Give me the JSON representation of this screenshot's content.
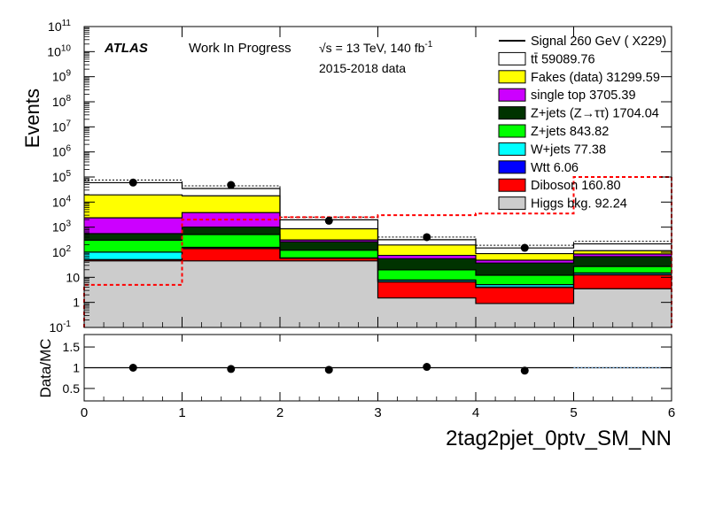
{
  "header": {
    "atlas": "ATLAS",
    "status": "Work In Progress",
    "energy": "√s = 13 TeV, 140 fb",
    "lumi_exp": "-1",
    "data_period": "2015-2018 data"
  },
  "colors": {
    "ttbar": "#ffffff",
    "fakes": "#ffff00",
    "singletop": "#cc00ff",
    "ztautau": "#003300",
    "zjets": "#00ff00",
    "wjets": "#00ffff",
    "wtt": "#0000ff",
    "diboson": "#ff0000",
    "higgs": "#cccccc",
    "signal": "#ff0000"
  },
  "chart_data": {
    "type": "bar",
    "subtype": "stacked-histogram-with-ratio",
    "x_title": "2tag2pjet_0ptv_SM_NN",
    "y_title": "Events",
    "ratio_y_title": "Data/MC",
    "log_y": true,
    "xlim": [
      0,
      6
    ],
    "ylim_exponents": [
      -1,
      11
    ],
    "ratio_ylim": [
      0.2,
      1.8
    ],
    "bin_edges": [
      0,
      1,
      2,
      3,
      4,
      5,
      6
    ],
    "x_ticks": [
      "0",
      "1",
      "2",
      "3",
      "4",
      "5",
      "6"
    ],
    "y_ticks": [
      {
        "exp": -1,
        "base": "10",
        "sup": "-1"
      },
      {
        "exp": 0,
        "base": "1",
        "sup": ""
      },
      {
        "exp": 1,
        "base": "10",
        "sup": ""
      },
      {
        "exp": 2,
        "base": "10",
        "sup": "2"
      },
      {
        "exp": 3,
        "base": "10",
        "sup": "3"
      },
      {
        "exp": 4,
        "base": "10",
        "sup": "4"
      },
      {
        "exp": 5,
        "base": "10",
        "sup": "5"
      },
      {
        "exp": 6,
        "base": "10",
        "sup": "6"
      },
      {
        "exp": 7,
        "base": "10",
        "sup": "7"
      },
      {
        "exp": 8,
        "base": "10",
        "sup": "8"
      },
      {
        "exp": 9,
        "base": "10",
        "sup": "9"
      },
      {
        "exp": 10,
        "base": "10",
        "sup": "10"
      },
      {
        "exp": 11,
        "base": "10",
        "sup": "11"
      }
    ],
    "ratio_ticks": [
      "0.5",
      "1",
      "1.5"
    ],
    "stack": [
      {
        "key": "higgs",
        "label": "Higgs bkg. 92.24",
        "values": [
          45,
          45,
          45,
          1.5,
          0.9,
          3.5
        ]
      },
      {
        "key": "diboson",
        "label": "Diboson 160.80",
        "values": [
          5,
          95,
          12,
          5,
          3,
          9
        ]
      },
      {
        "key": "wtt",
        "label": "Wtt 6.06",
        "values": [
          1,
          2,
          0.5,
          0.3,
          0.2,
          0.5
        ]
      },
      {
        "key": "wjets",
        "label": "W+jets 77.38",
        "values": [
          50,
          15,
          2,
          1,
          1,
          2
        ]
      },
      {
        "key": "zjets",
        "label": "Z+jets 843.82",
        "values": [
          200,
          350,
          60,
          12,
          7,
          12
        ]
      },
      {
        "key": "ztautau",
        "label": "Z+jets (Z→ττ) 1704.04",
        "values": [
          250,
          500,
          140,
          35,
          25,
          40
        ]
      },
      {
        "key": "singletop",
        "label": "single top 3705.39",
        "values": [
          1800,
          2800,
          50,
          20,
          11,
          18
        ]
      },
      {
        "key": "fakes",
        "label": "Fakes (data) 31299.59",
        "values": [
          17000,
          14000,
          550,
          120,
          40,
          30
        ]
      },
      {
        "key": "ttbar",
        "label": "tt̄ 59089.76",
        "values": [
          40000,
          17000,
          1100,
          120,
          60,
          100
        ]
      }
    ],
    "legend_order": [
      "signal",
      "ttbar",
      "fakes",
      "singletop",
      "ztautau",
      "zjets",
      "wjets",
      "wtt",
      "diboson",
      "higgs"
    ],
    "signal": {
      "label": "Signal 260 GeV ( X229)",
      "values": [
        5,
        2000,
        2500,
        3000,
        3500,
        100000
      ]
    },
    "data": {
      "x": [
        0.5,
        1.5,
        2.5,
        3.5,
        4.5
      ],
      "y": [
        60000,
        48000,
        1800,
        400,
        150
      ],
      "yerr": [
        250,
        220,
        42,
        20,
        12
      ]
    },
    "ratio": {
      "x": [
        0.5,
        1.5,
        2.5,
        3.5,
        4.5
      ],
      "y": [
        1.0,
        0.97,
        0.95,
        1.02,
        0.93
      ]
    }
  }
}
